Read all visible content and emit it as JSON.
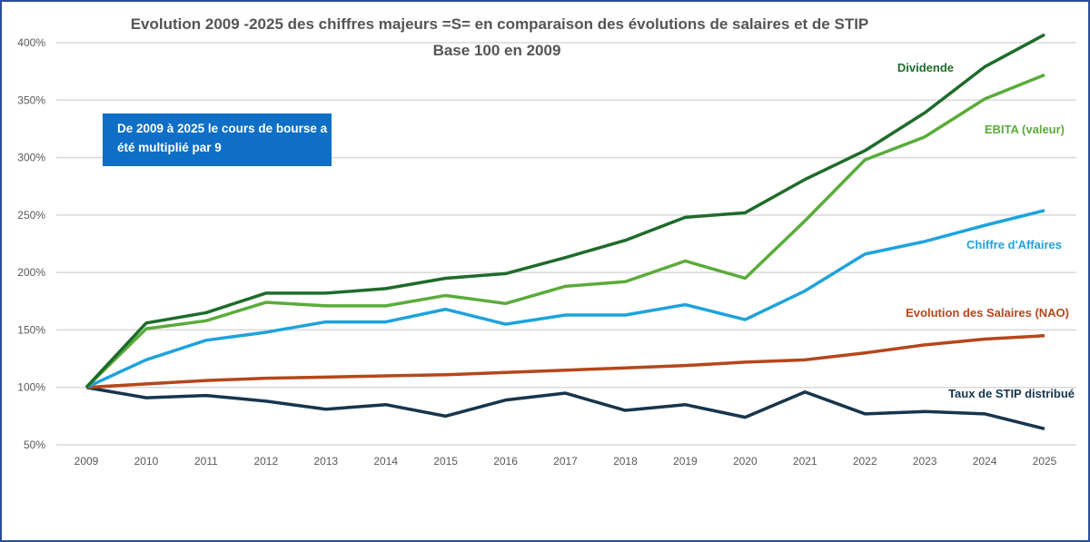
{
  "chart_data": {
    "type": "line",
    "title": "Evolution 2009 -2025 des chiffres majeurs =S= en comparaison des évolutions de salaires et de STIP",
    "subtitle": "Base 100 en 2009",
    "annotation": "De 2009 à 2025 le cours de bourse a été multiplié par 9",
    "xlabel": "",
    "ylabel": "",
    "x": [
      "2009",
      "2010",
      "2011",
      "2012",
      "2013",
      "2014",
      "2015",
      "2016",
      "2017",
      "2018",
      "2019",
      "2020",
      "2021",
      "2022",
      "2023",
      "2024",
      "2025"
    ],
    "ylim": [
      50,
      400
    ],
    "yticks": [
      "50%",
      "100%",
      "150%",
      "200%",
      "250%",
      "300%",
      "350%",
      "400%"
    ],
    "yticks_values": [
      50,
      100,
      150,
      200,
      250,
      300,
      350,
      400
    ],
    "grid": true,
    "legend": "inline labels at line ends",
    "series": [
      {
        "name": "Dividende",
        "color": "#1f6b2b",
        "values": [
          100,
          156,
          165,
          182,
          182,
          186,
          195,
          199,
          213,
          228,
          248,
          252,
          281,
          306,
          339,
          379,
          407
        ]
      },
      {
        "name": "EBITA (valeur)",
        "color": "#5aac3a",
        "values": [
          100,
          151,
          158,
          174,
          171,
          171,
          180,
          173,
          188,
          192,
          210,
          195,
          245,
          298,
          318,
          351,
          372
        ]
      },
      {
        "name": "Chiffre d'Affaires",
        "color": "#1ea3dc",
        "values": [
          100,
          124,
          141,
          148,
          157,
          157,
          168,
          155,
          163,
          163,
          172,
          159,
          184,
          216,
          227,
          241,
          254
        ]
      },
      {
        "name": "Evolution des Salaires (NAO)",
        "color": "#b5471b",
        "values": [
          100,
          103,
          106,
          108,
          109,
          110,
          111,
          113,
          115,
          117,
          119,
          122,
          124,
          130,
          137,
          142,
          145
        ]
      },
      {
        "name": "Taux de STIP distribué",
        "color": "#17354d",
        "values": [
          100,
          91,
          93,
          88,
          81,
          85,
          75,
          89,
          95,
          80,
          85,
          74,
          96,
          77,
          79,
          77,
          64
        ]
      }
    ]
  }
}
